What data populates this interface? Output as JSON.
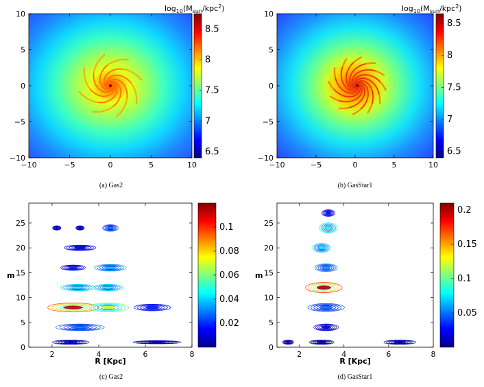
{
  "figure": {
    "panels": [
      {
        "id": "a",
        "caption": "(a) Gas2",
        "kind": "density-map",
        "xticks": [
          "−10",
          "−5",
          "0",
          "5",
          "10"
        ],
        "yticks": [
          "10",
          "5",
          "0",
          "−5",
          "−10"
        ],
        "colorbar_title": "log10(Msun/kpc2)",
        "colorbar_title_parts": {
          "pre": "log",
          "sub1": "10",
          "mid": "(M",
          "sub2": "sun",
          "post": "/kpc",
          "sup": "2",
          "end": ")"
        },
        "colorbar_ticks": [
          "8.5",
          "8",
          "7.5",
          "7",
          "6.5"
        ]
      },
      {
        "id": "b",
        "caption": "(b) GasStar1",
        "kind": "density-map",
        "xticks": [
          "−10",
          "−5",
          "0",
          "5",
          "10"
        ],
        "yticks": [
          "10",
          "5",
          "0",
          "−5",
          "−10"
        ],
        "colorbar_title": "log10(Msun/kpc2)",
        "colorbar_title_parts": {
          "pre": "log",
          "sub1": "10",
          "mid": "(M",
          "sub2": "sun",
          "post": "/kpc",
          "sup": "2",
          "end": ")"
        },
        "colorbar_ticks": [
          "8.5",
          "8",
          "7.5",
          "7",
          "6.5"
        ]
      },
      {
        "id": "c",
        "caption": "(c) Gas2",
        "kind": "contour",
        "xlabel": "R [Kpc]",
        "ylabel": "m",
        "xticks": [
          "2",
          "4",
          "6",
          "8"
        ],
        "yticks": [
          "25",
          "20",
          "15",
          "10",
          "5",
          "0"
        ],
        "colorbar_ticks": [
          "0.1",
          "0.08",
          "0.06",
          "0.04",
          "0.02"
        ]
      },
      {
        "id": "d",
        "caption": "(d) GasStar1",
        "kind": "contour",
        "xlabel": "R [Kpc]",
        "ylabel": "m",
        "xticks": [
          "2",
          "4",
          "6",
          "8"
        ],
        "yticks": [
          "25",
          "20",
          "15",
          "10",
          "5",
          "0"
        ],
        "colorbar_ticks": [
          "0.2",
          "0.15",
          "0.1",
          "0.05"
        ]
      }
    ]
  },
  "chart_data": [
    {
      "type": "heatmap",
      "title": "(a) Gas2",
      "xlabel": "",
      "ylabel": "",
      "xlim": [
        -10,
        10
      ],
      "ylim": [
        -10,
        10
      ],
      "colorbar": {
        "label": "log10(Msun/kpc2)",
        "range": [
          6.4,
          8.7
        ]
      },
      "description_values": {
        "peak_center": 8.7,
        "outer_edge": 6.5
      }
    },
    {
      "type": "heatmap",
      "title": "(b) GasStar1",
      "xlabel": "",
      "ylabel": "",
      "xlim": [
        -10,
        10
      ],
      "ylim": [
        -10,
        10
      ],
      "colorbar": {
        "label": "log10(Msun/kpc2)",
        "range": [
          6.4,
          8.6
        ]
      },
      "description_values": {
        "peak_center": 8.6,
        "outer_edge": 6.5
      }
    },
    {
      "type": "heatmap",
      "title": "(c) Gas2",
      "xlabel": "R [Kpc]",
      "ylabel": "m",
      "xlim": [
        1,
        8
      ],
      "ylim": [
        0,
        29
      ],
      "colorbar": {
        "range": [
          0,
          0.12
        ]
      },
      "peaks": [
        {
          "R": 2.9,
          "m": 8,
          "value": 0.11
        },
        {
          "R": 4.4,
          "m": 8,
          "value": 0.07
        },
        {
          "R": 3.1,
          "m": 12,
          "value": 0.05
        },
        {
          "R": 4.4,
          "m": 12,
          "value": 0.05
        },
        {
          "R": 4.5,
          "m": 16,
          "value": 0.04
        },
        {
          "R": 4.5,
          "m": 24,
          "value": 0.03
        },
        {
          "R": 3.2,
          "m": 4,
          "value": 0.03
        }
      ]
    },
    {
      "type": "heatmap",
      "title": "(d) GasStar1",
      "xlabel": "R [Kpc]",
      "ylabel": "m",
      "xlim": [
        1,
        8
      ],
      "ylim": [
        0,
        29
      ],
      "colorbar": {
        "range": [
          0,
          0.21
        ]
      },
      "peaks": [
        {
          "R": 3.1,
          "m": 12,
          "value": 0.2
        },
        {
          "R": 3.3,
          "m": 24,
          "value": 0.09
        },
        {
          "R": 3.0,
          "m": 20,
          "value": 0.08
        },
        {
          "R": 3.2,
          "m": 16,
          "value": 0.06
        },
        {
          "R": 3.2,
          "m": 8,
          "value": 0.05
        }
      ]
    }
  ]
}
